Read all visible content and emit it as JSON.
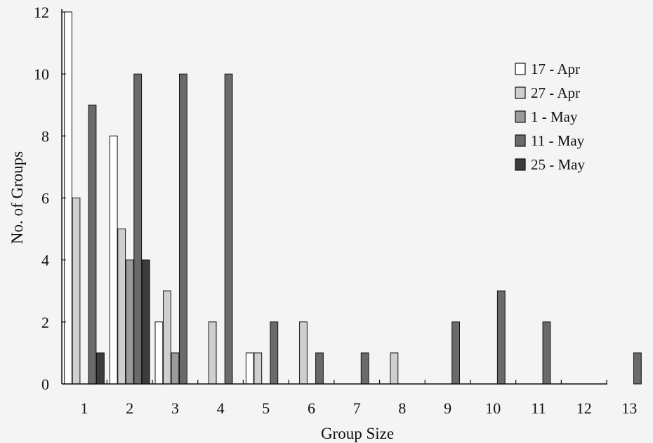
{
  "chart_data": {
    "type": "bar",
    "title": "",
    "xlabel": "Group Size",
    "ylabel": "No. of Groups",
    "ylim": [
      0,
      12
    ],
    "yticks": [
      0,
      2,
      4,
      6,
      8,
      10,
      12
    ],
    "categories": [
      "1",
      "2",
      "3",
      "4",
      "5",
      "6",
      "7",
      "8",
      "9",
      "10",
      "11",
      "12",
      "13"
    ],
    "legend_position": "top-right",
    "grid": false,
    "series": [
      {
        "name": "17 - Apr",
        "color": "#ffffff",
        "values": [
          12,
          8,
          2,
          0,
          1,
          0,
          0,
          0,
          0,
          0,
          0,
          0,
          0
        ]
      },
      {
        "name": "27 - Apr",
        "color": "#cfcfcf",
        "values": [
          6,
          5,
          3,
          2,
          1,
          2,
          0,
          1,
          0,
          0,
          0,
          0,
          0
        ]
      },
      {
        "name": "1 - May",
        "color": "#9b9b9b",
        "values": [
          0,
          4,
          1,
          0,
          0,
          0,
          0,
          0,
          0,
          0,
          0,
          0,
          0
        ]
      },
      {
        "name": "11 - May",
        "color": "#6a6a6a",
        "values": [
          9,
          10,
          10,
          10,
          2,
          1,
          1,
          0,
          2,
          3,
          2,
          0,
          1
        ]
      },
      {
        "name": "25 - May",
        "color": "#3c3c3c",
        "values": [
          1,
          4,
          0,
          0,
          0,
          0,
          0,
          0,
          0,
          0,
          0,
          0,
          0
        ]
      }
    ]
  }
}
